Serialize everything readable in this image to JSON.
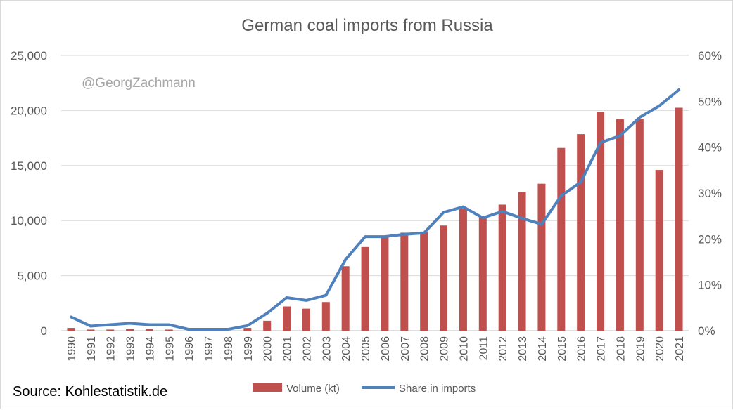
{
  "chart_data": {
    "type": "bar",
    "title": "German coal imports from Russia",
    "watermark": "@GeorgZachmann",
    "source": "Source: Kohlestatistik.de",
    "categories": [
      "1990",
      "1991",
      "1992",
      "1993",
      "1994",
      "1995",
      "1996",
      "1997",
      "1998",
      "1999",
      "2000",
      "2001",
      "2002",
      "2003",
      "2004",
      "2005",
      "2006",
      "2007",
      "2008",
      "2009",
      "2010",
      "2011",
      "2012",
      "2013",
      "2014",
      "2015",
      "2016",
      "2017",
      "2018",
      "2019",
      "2020",
      "2021"
    ],
    "y_left": {
      "ylim": [
        0,
        25000
      ],
      "ticks": [
        "0",
        "5,000",
        "10,000",
        "15,000",
        "20,000",
        "25,000"
      ],
      "tick_values": [
        0,
        5000,
        10000,
        15000,
        20000,
        25000
      ]
    },
    "y_right": {
      "ylim": [
        0,
        0.6
      ],
      "ticks": [
        "0%",
        "10%",
        "20%",
        "30%",
        "40%",
        "50%",
        "60%"
      ],
      "tick_values": [
        0,
        0.1,
        0.2,
        0.3,
        0.4,
        0.5,
        0.6
      ]
    },
    "grid": true,
    "legend_position": "bottom",
    "series": [
      {
        "name": "Volume (kt)",
        "type": "bar",
        "axis": "left",
        "color": "#c0504d",
        "values": [
          250,
          100,
          100,
          150,
          150,
          100,
          0,
          0,
          0,
          250,
          900,
          2200,
          2000,
          2600,
          5850,
          7600,
          8500,
          8900,
          9000,
          9550,
          11050,
          10300,
          11450,
          12600,
          13350,
          16600,
          17850,
          19900,
          19200,
          19250,
          14600,
          20250
        ]
      },
      {
        "name": "Share in imports",
        "type": "line",
        "axis": "right",
        "color": "#4f81bd",
        "values": [
          0.03,
          0.01,
          0.013,
          0.016,
          0.013,
          0.013,
          0.003,
          0.003,
          0.003,
          0.011,
          0.038,
          0.072,
          0.066,
          0.077,
          0.155,
          0.205,
          0.205,
          0.21,
          0.213,
          0.258,
          0.27,
          0.246,
          0.26,
          0.245,
          0.232,
          0.294,
          0.324,
          0.41,
          0.425,
          0.465,
          0.49,
          0.525
        ]
      }
    ]
  }
}
